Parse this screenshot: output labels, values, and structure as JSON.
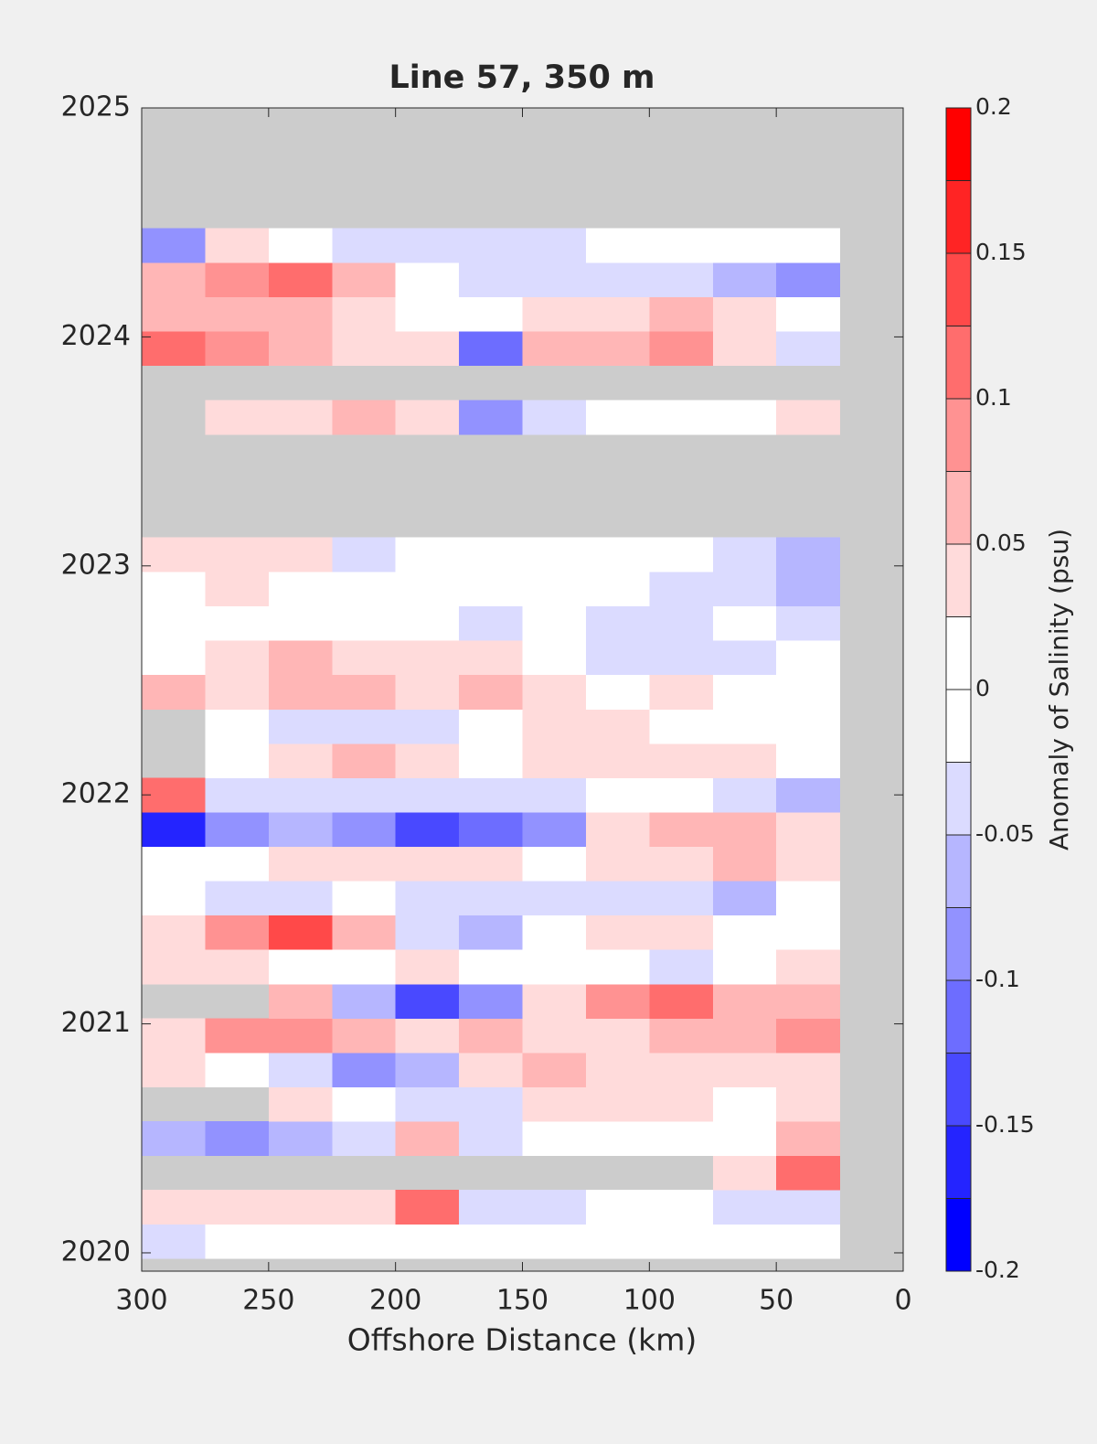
{
  "chart_data": {
    "type": "contour",
    "title": "Line 57, 350 m",
    "xlabel": "Offshore Distance (km)",
    "xlim": [
      300,
      0
    ],
    "xticks": [
      300,
      250,
      200,
      150,
      100,
      50,
      0
    ],
    "ylim": [
      2019.92,
      2025
    ],
    "yticks": [
      2020,
      2021,
      2022,
      2023,
      2024,
      2025
    ],
    "missing_color": "#cccccc",
    "x": [
      287.5,
      262.5,
      237.5,
      212.5,
      187.5,
      162.5,
      137.5,
      112.5,
      87.5,
      62.5,
      37.5
    ],
    "y": [
      2020.05,
      2020.2,
      2020.35,
      2020.5,
      2020.65,
      2020.8,
      2020.95,
      2021.1,
      2021.25,
      2021.4,
      2021.55,
      2021.7,
      2021.85,
      2022.0,
      2022.15,
      2022.3,
      2022.45,
      2022.6,
      2022.75,
      2022.9,
      2023.05,
      2023.2,
      2023.35,
      2023.5,
      2023.65,
      2023.8,
      2023.95,
      2024.1,
      2024.25,
      2024.4
    ],
    "z": [
      [
        -0.04,
        0,
        0,
        0,
        0,
        0,
        0,
        0,
        0,
        0,
        0
      ],
      [
        0.03,
        0.03,
        0.03,
        0.03,
        0.1,
        -0.03,
        -0.04,
        0,
        -0.02,
        -0.04,
        -0.05
      ],
      [
        null,
        null,
        null,
        null,
        null,
        null,
        null,
        null,
        null,
        0.04,
        0.1
      ],
      [
        -0.06,
        -0.08,
        -0.07,
        -0.03,
        0.05,
        -0.03,
        0,
        0,
        0,
        0.02,
        0.06
      ],
      [
        null,
        null,
        0.03,
        0.02,
        -0.05,
        -0.03,
        0.03,
        0.03,
        0.03,
        0.02,
        0.03
      ],
      [
        0.03,
        0.02,
        -0.04,
        -0.08,
        -0.06,
        0.04,
        0.06,
        0.04,
        0.03,
        0.03,
        0.03
      ],
      [
        0.04,
        0.08,
        0.08,
        0.06,
        0.04,
        0.05,
        0.04,
        0.04,
        0.05,
        0.05,
        0.08
      ],
      [
        null,
        null,
        0.06,
        -0.07,
        -0.13,
        -0.09,
        0.03,
        0.08,
        0.11,
        0.05,
        0.06
      ],
      [
        0.03,
        0.03,
        0,
        0,
        0.03,
        0,
        0.02,
        0,
        -0.03,
        0,
        0.04
      ],
      [
        0.03,
        0.09,
        0.14,
        0.07,
        -0.04,
        -0.06,
        0,
        0.03,
        0.03,
        0,
        0
      ],
      [
        -0.02,
        -0.03,
        -0.03,
        0,
        -0.04,
        -0.05,
        -0.04,
        -0.04,
        -0.05,
        -0.07,
        0
      ],
      [
        0,
        0,
        0.03,
        0.04,
        0.03,
        0.03,
        0,
        0.03,
        0.04,
        0.05,
        0.03
      ],
      [
        -0.17,
        -0.08,
        -0.06,
        -0.1,
        -0.13,
        -0.11,
        -0.09,
        0.03,
        0.07,
        0.05,
        0.03
      ],
      [
        0.1,
        -0.04,
        -0.05,
        -0.04,
        -0.04,
        -0.03,
        -0.03,
        -0.02,
        -0.02,
        -0.03,
        -0.07
      ],
      [
        null,
        0,
        0.03,
        0.07,
        0.04,
        0,
        0.03,
        0.03,
        0.03,
        0.03,
        0
      ],
      [
        null,
        0,
        -0.03,
        -0.03,
        -0.03,
        0,
        0.03,
        0.03,
        0,
        0,
        0
      ],
      [
        0.05,
        0.04,
        0.06,
        0.05,
        0.03,
        0.05,
        0.04,
        0,
        0.03,
        0,
        0
      ],
      [
        0,
        0.03,
        0.05,
        0.03,
        0.04,
        0.03,
        0,
        -0.03,
        -0.04,
        -0.03,
        0
      ],
      [
        0,
        0,
        0,
        0,
        0,
        -0.03,
        0,
        -0.03,
        -0.04,
        0,
        -0.05
      ],
      [
        0.02,
        0.04,
        0,
        0,
        0,
        0,
        0,
        0,
        -0.04,
        -0.05,
        -0.07
      ],
      [
        0.03,
        0.03,
        0.03,
        -0.04,
        0,
        0,
        0,
        0,
        0,
        -0.04,
        -0.06
      ],
      [
        null,
        null,
        null,
        null,
        null,
        null,
        null,
        null,
        null,
        null,
        null
      ],
      [
        null,
        null,
        null,
        null,
        null,
        null,
        null,
        null,
        null,
        null,
        null
      ],
      [
        null,
        null,
        null,
        null,
        null,
        null,
        null,
        null,
        null,
        null,
        null
      ],
      [
        null,
        0.03,
        0.03,
        0.05,
        0.03,
        -0.1,
        -0.05,
        0.02,
        0.02,
        0.02,
        0.03
      ],
      [
        null,
        null,
        null,
        null,
        null,
        null,
        null,
        null,
        null,
        null,
        null
      ],
      [
        0.1,
        0.09,
        0.05,
        0.03,
        0.03,
        -0.12,
        0.05,
        0.07,
        0.08,
        0.04,
        -0.04
      ],
      [
        0.07,
        0.07,
        0.06,
        0.03,
        0,
        0,
        0.03,
        0.04,
        0.05,
        0.04,
        0
      ],
      [
        0.06,
        0.08,
        0.1,
        0.05,
        0,
        -0.03,
        -0.04,
        -0.03,
        -0.05,
        -0.06,
        -0.08
      ],
      [
        -0.1,
        0.03,
        0,
        -0.03,
        -0.05,
        -0.04,
        -0.03,
        0,
        0,
        0.02,
        0
      ]
    ],
    "colorbar": {
      "label": "Anomaly of Salinity (psu)",
      "lim": [
        -0.2,
        0.2
      ],
      "ticks": [
        -0.2,
        -0.15,
        -0.1,
        -0.05,
        0,
        0.05,
        0.1,
        0.15,
        0.2
      ],
      "levels": [
        -0.2,
        -0.175,
        -0.15,
        -0.125,
        -0.1,
        -0.075,
        -0.05,
        -0.025,
        0,
        0.025,
        0.05,
        0.075,
        0.1,
        0.125,
        0.15,
        0.175,
        0.2
      ],
      "colors": {
        "low": "#0000ff",
        "mid": "#ffffff",
        "high": "#ff0000"
      }
    }
  }
}
